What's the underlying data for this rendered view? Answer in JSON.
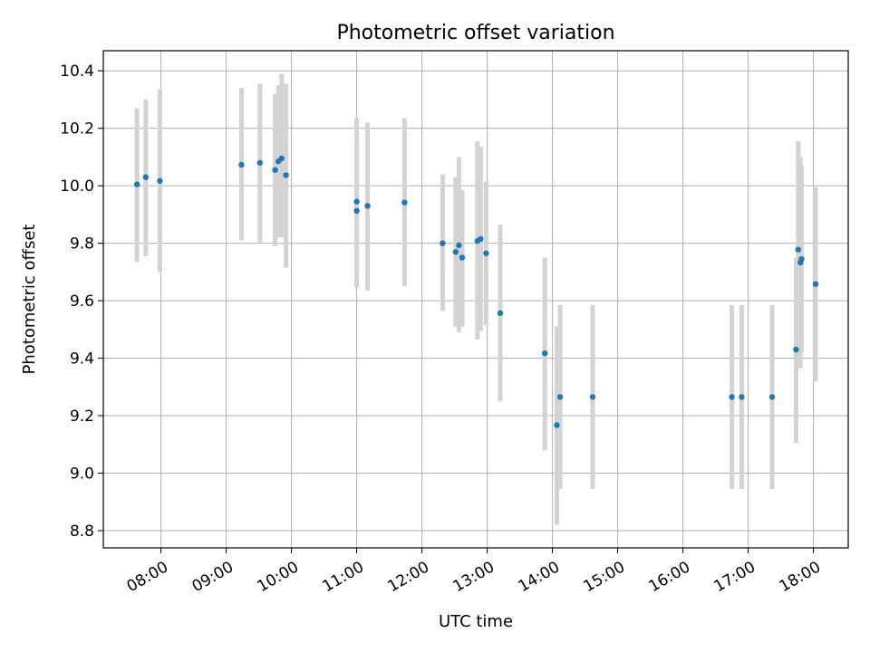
{
  "chart_data": {
    "type": "scatter",
    "title": "Photometric offset variation",
    "xlabel": "UTC time",
    "ylabel": "Photometric offset",
    "x_unit": "hours (UTC)",
    "xlim": [
      "07:07",
      "18:32"
    ],
    "ylim": [
      8.74,
      10.47
    ],
    "x_ticks": [
      {
        "value": "08:00",
        "label": "08:00"
      },
      {
        "value": "09:00",
        "label": "09:00"
      },
      {
        "value": "10:00",
        "label": "10:00"
      },
      {
        "value": "11:00",
        "label": "11:00"
      },
      {
        "value": "12:00",
        "label": "12:00"
      },
      {
        "value": "13:00",
        "label": "13:00"
      },
      {
        "value": "14:00",
        "label": "14:00"
      },
      {
        "value": "15:00",
        "label": "15:00"
      },
      {
        "value": "16:00",
        "label": "16:00"
      },
      {
        "value": "17:00",
        "label": "17:00"
      },
      {
        "value": "18:00",
        "label": "18:00"
      }
    ],
    "y_ticks": [
      {
        "value": 8.8,
        "label": "8.8"
      },
      {
        "value": 9.0,
        "label": "9.0"
      },
      {
        "value": 9.2,
        "label": "9.2"
      },
      {
        "value": 9.4,
        "label": "9.4"
      },
      {
        "value": 9.6,
        "label": "9.6"
      },
      {
        "value": 9.8,
        "label": "9.8"
      },
      {
        "value": 10.0,
        "label": "10.0"
      },
      {
        "value": 10.2,
        "label": "10.2"
      },
      {
        "value": 10.4,
        "label": "10.4"
      }
    ],
    "grid": true,
    "point_color": "#1f77b4",
    "errorbar_color": "#d3d3d3",
    "points": [
      {
        "x": "07:38",
        "y": 10.005,
        "yerr_low": 9.735,
        "yerr_high": 10.27
      },
      {
        "x": "07:46",
        "y": 10.03,
        "yerr_low": 9.755,
        "yerr_high": 10.3
      },
      {
        "x": "07:59",
        "y": 10.017,
        "yerr_low": 9.7,
        "yerr_high": 10.335
      },
      {
        "x": "09:14",
        "y": 10.073,
        "yerr_low": 9.81,
        "yerr_high": 10.34
      },
      {
        "x": "09:31",
        "y": 10.08,
        "yerr_low": 9.8,
        "yerr_high": 10.355
      },
      {
        "x": "09:45",
        "y": 10.055,
        "yerr_low": 9.79,
        "yerr_high": 10.32
      },
      {
        "x": "09:48",
        "y": 10.085,
        "yerr_low": 9.82,
        "yerr_high": 10.35
      },
      {
        "x": "09:51",
        "y": 10.095,
        "yerr_low": 9.82,
        "yerr_high": 10.39
      },
      {
        "x": "09:55",
        "y": 10.037,
        "yerr_low": 9.715,
        "yerr_high": 10.355
      },
      {
        "x": "11:00",
        "y": 9.945,
        "yerr_low": 9.67,
        "yerr_high": 10.235
      },
      {
        "x": "11:00",
        "y": 9.913,
        "yerr_low": 9.645,
        "yerr_high": 10.175
      },
      {
        "x": "11:10",
        "y": 9.93,
        "yerr_low": 9.635,
        "yerr_high": 10.22
      },
      {
        "x": "11:44",
        "y": 9.942,
        "yerr_low": 9.65,
        "yerr_high": 10.235
      },
      {
        "x": "12:19",
        "y": 9.8,
        "yerr_low": 9.565,
        "yerr_high": 10.04
      },
      {
        "x": "12:31",
        "y": 9.77,
        "yerr_low": 9.51,
        "yerr_high": 10.03
      },
      {
        "x": "12:34",
        "y": 9.793,
        "yerr_low": 9.49,
        "yerr_high": 10.1
      },
      {
        "x": "12:37",
        "y": 9.75,
        "yerr_low": 9.51,
        "yerr_high": 9.985
      },
      {
        "x": "12:51",
        "y": 9.808,
        "yerr_low": 9.465,
        "yerr_high": 10.155
      },
      {
        "x": "12:54",
        "y": 9.815,
        "yerr_low": 9.495,
        "yerr_high": 10.135
      },
      {
        "x": "12:59",
        "y": 9.765,
        "yerr_low": 9.515,
        "yerr_high": 10.015
      },
      {
        "x": "13:12",
        "y": 9.557,
        "yerr_low": 9.25,
        "yerr_high": 9.865
      },
      {
        "x": "13:53",
        "y": 9.417,
        "yerr_low": 9.08,
        "yerr_high": 9.75
      },
      {
        "x": "14:04",
        "y": 9.167,
        "yerr_low": 8.82,
        "yerr_high": 9.51
      },
      {
        "x": "14:07",
        "y": 9.265,
        "yerr_low": 8.945,
        "yerr_high": 9.585
      },
      {
        "x": "14:37",
        "y": 9.265,
        "yerr_low": 8.945,
        "yerr_high": 9.585
      },
      {
        "x": "16:45",
        "y": 9.265,
        "yerr_low": 8.945,
        "yerr_high": 9.585
      },
      {
        "x": "16:54",
        "y": 9.265,
        "yerr_low": 8.945,
        "yerr_high": 9.585
      },
      {
        "x": "17:22",
        "y": 9.265,
        "yerr_low": 8.945,
        "yerr_high": 9.585
      },
      {
        "x": "17:44",
        "y": 9.43,
        "yerr_low": 9.105,
        "yerr_high": 9.75
      },
      {
        "x": "17:46",
        "y": 9.778,
        "yerr_low": 9.4,
        "yerr_high": 10.155
      },
      {
        "x": "17:48",
        "y": 9.733,
        "yerr_low": 9.365,
        "yerr_high": 10.1
      },
      {
        "x": "17:49",
        "y": 9.745,
        "yerr_low": 9.42,
        "yerr_high": 10.07
      },
      {
        "x": "18:02",
        "y": 9.658,
        "yerr_low": 9.32,
        "yerr_high": 9.995
      }
    ]
  }
}
